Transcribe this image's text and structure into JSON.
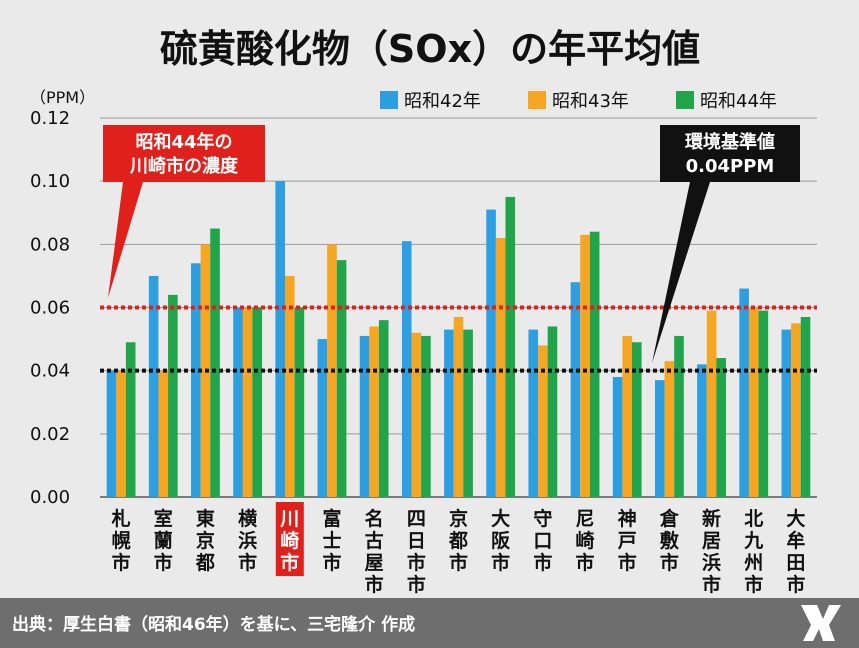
{
  "chart_data": {
    "type": "bar",
    "title": "硫黄酸化物（SOx）の年平均値",
    "ylabel": "（PPM）",
    "ylim": [
      0,
      0.12
    ],
    "yticks": [
      "0.00",
      "0.02",
      "0.04",
      "0.06",
      "0.08",
      "0.10",
      "0.12"
    ],
    "categories": [
      "札幌市",
      "室蘭市",
      "東京都",
      "横浜市",
      "川崎市",
      "富士市",
      "名古屋市",
      "四日市市",
      "京都市",
      "大阪市",
      "守口市",
      "尼崎市",
      "神戸市",
      "倉敷市",
      "新居浜市",
      "北九州市",
      "大牟田市"
    ],
    "highlight_category": "川崎市",
    "series": [
      {
        "name": "昭和42年",
        "color": "#2d9fe0",
        "values": [
          0.04,
          0.07,
          0.074,
          0.06,
          0.1,
          0.05,
          0.051,
          0.081,
          0.053,
          0.091,
          0.053,
          0.068,
          0.038,
          0.037,
          0.042,
          0.066,
          0.053
        ]
      },
      {
        "name": "昭和43年",
        "color": "#f5a623",
        "values": [
          0.04,
          0.04,
          0.08,
          0.06,
          0.07,
          0.08,
          0.054,
          0.052,
          0.057,
          0.082,
          0.048,
          0.083,
          0.051,
          0.043,
          0.059,
          0.06,
          0.055
        ]
      },
      {
        "name": "昭和44年",
        "color": "#21a44a",
        "values": [
          0.049,
          0.064,
          0.085,
          0.06,
          0.06,
          0.075,
          0.056,
          0.051,
          0.053,
          0.095,
          0.054,
          0.084,
          0.049,
          0.051,
          0.044,
          0.059,
          0.057
        ]
      }
    ],
    "reference_lines": [
      {
        "value": 0.06,
        "color": "#e0201b",
        "label": [
          "昭和44年の",
          "川崎市の濃度"
        ]
      },
      {
        "value": 0.04,
        "color": "#111111",
        "label": [
          "環境基準値",
          "0.04PPM"
        ]
      }
    ],
    "legend": "top-right",
    "grid": true
  },
  "footer": {
    "source": "出典：厚生白書（昭和46年）を基に、三宅隆介 作成"
  }
}
